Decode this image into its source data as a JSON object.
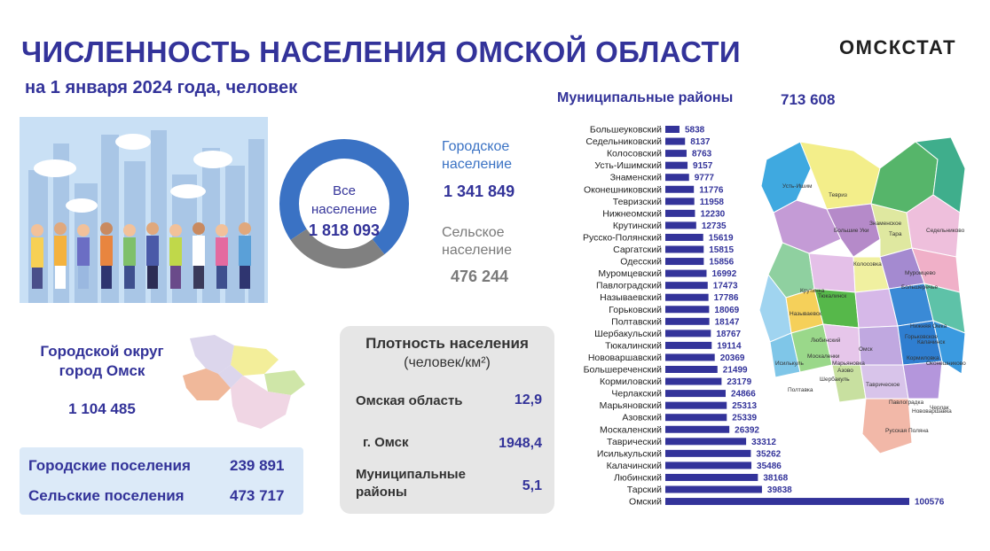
{
  "header": {
    "title": "ЧИСЛЕННОСТЬ НАСЕЛЕНИЯ ОМСКОЙ ОБЛАСТИ",
    "subtitle": "на 1 января 2024 года, человек",
    "brand": "ОМСКСТАТ"
  },
  "colors": {
    "accent": "#33339a",
    "urban": "#3a72c4",
    "rural": "#808080",
    "bar": "#33339a",
    "density_bg": "#e6e6e6",
    "settlements_bg": "#dceaf8"
  },
  "donut": {
    "center_label": "Все население",
    "total": "1 818 093",
    "urban_label": "Городское население",
    "urban_value": "1 341 849",
    "rural_label": "Сельское население",
    "rural_value": "476 244"
  },
  "omsk_city": {
    "title": "Городской округ город Омск",
    "value": "1 104 485"
  },
  "settlements": {
    "urban_label": "Городские поселения",
    "urban_value": "239 891",
    "rural_label": "Сельские  поселения",
    "rural_value": "473 717"
  },
  "density": {
    "title": "Плотность населения",
    "unit": "(человек/км²)",
    "rows": [
      {
        "name": "Омская область",
        "value": "12,9"
      },
      {
        "name": "г. Омск",
        "value": "1948,4"
      },
      {
        "name": "Муниципальные районы",
        "value": "5,1"
      }
    ]
  },
  "municipal": {
    "label": "Муниципальные районы",
    "total": "713 608"
  },
  "chart_data": [
    {
      "type": "pie",
      "title": "",
      "labels": [
        "Городское население",
        "Сельское население"
      ],
      "values": [
        1341849,
        476244
      ],
      "center_text": "Все население 1 818 093"
    },
    {
      "type": "bar",
      "orientation": "horizontal",
      "title": "Муниципальные районы",
      "categories": [
        "Большеуковский",
        "Седельниковский",
        "Колосовский",
        "Усть-Ишимский",
        "Знаменский",
        "Оконешниковский",
        "Тевризский",
        "Нижнеомский",
        "Крутинский",
        "Русско-Полянский",
        "Саргатский",
        "Одесский",
        "Муромцевский",
        "Павлоградский",
        "Называевский",
        "Горьковский",
        "Полтавский",
        "Шербакульский",
        "Тюкалинский",
        "Нововаршавский",
        "Большереченский",
        "Кормиловский",
        "Черлакский",
        "Марьяновский",
        "Азовский",
        "Москаленский",
        "Таврический",
        "Исилькульский",
        "Калачинский",
        "Любинский",
        "Тарский",
        "Омский"
      ],
      "values": [
        5838,
        8137,
        8763,
        9157,
        9777,
        11776,
        11958,
        12230,
        12735,
        15619,
        15815,
        15856,
        16992,
        17473,
        17786,
        18069,
        18147,
        18767,
        19114,
        20369,
        21499,
        23179,
        24866,
        25313,
        25339,
        26392,
        33312,
        35262,
        35486,
        38168,
        39838,
        100576
      ]
    }
  ],
  "map_labels": [
    "Усть-Ишим",
    "Тевриз",
    "Большие Уки",
    "Знаменское",
    "Тара",
    "Седельниково",
    "Колосовка",
    "Муромцево",
    "Большеречье",
    "Крутинка",
    "Тюкалинск",
    "Называевск",
    "Нижняя Омка",
    "Горьковское",
    "Любинский",
    "Исилькуль",
    "Москаленки",
    "Марьяновка",
    "Омск",
    "Калачинск",
    "Кормиловка",
    "Оконешниково",
    "Шербакуль",
    "Азово",
    "Таврическое",
    "Полтавка",
    "Павлоградка",
    "Нововаршавка",
    "Черлак",
    "Русская Поляна"
  ]
}
